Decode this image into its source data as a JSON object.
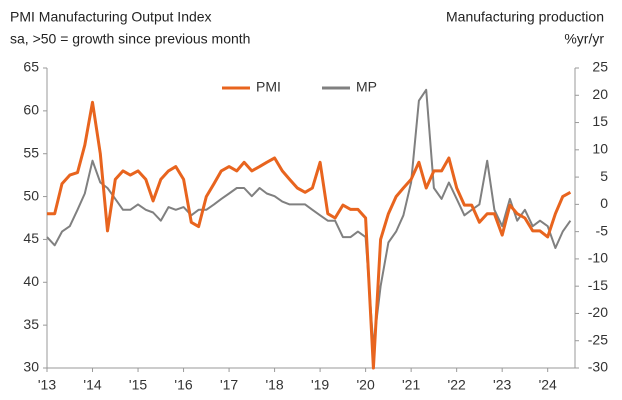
{
  "chart_data": {
    "type": "line",
    "title": "PMI Manufacturing Output Index",
    "subtitle": "sa, >50 = growth since previous month",
    "y2_label": "Manufacturing production",
    "y2_unit": "%yr/yr",
    "x": [
      2013,
      2013.17,
      2013.33,
      2013.5,
      2013.67,
      2013.83,
      2014,
      2014.17,
      2014.33,
      2014.5,
      2014.67,
      2014.83,
      2015,
      2015.17,
      2015.33,
      2015.5,
      2015.67,
      2015.83,
      2016,
      2016.17,
      2016.33,
      2016.5,
      2016.67,
      2016.83,
      2017,
      2017.17,
      2017.33,
      2017.5,
      2017.67,
      2017.83,
      2018,
      2018.17,
      2018.33,
      2018.5,
      2018.67,
      2018.83,
      2019,
      2019.17,
      2019.33,
      2019.5,
      2019.67,
      2019.83,
      2020,
      2020.17,
      2020.33,
      2020.5,
      2020.67,
      2020.83,
      2021,
      2021.17,
      2021.33,
      2021.5,
      2021.67,
      2021.83,
      2022,
      2022.17,
      2022.33,
      2022.5,
      2022.67,
      2022.83,
      2023,
      2023.17,
      2023.33,
      2023.5,
      2023.67,
      2023.83,
      2024,
      2024.17,
      2024.33,
      2024.5
    ],
    "series": [
      {
        "name": "PMI",
        "color": "#e8641e",
        "axis": "y",
        "values": [
          48,
          48,
          51.5,
          52.5,
          52.8,
          56,
          61,
          55,
          46,
          52,
          53,
          52.5,
          53,
          52,
          49.5,
          52,
          53,
          53.5,
          52,
          47,
          46.5,
          50,
          51.5,
          53,
          53.5,
          53,
          54,
          53,
          53.5,
          54,
          54.5,
          53,
          52,
          51,
          50.5,
          51,
          54,
          48,
          47.5,
          49,
          48.5,
          48.5,
          47.5,
          30,
          45,
          48,
          50,
          51,
          52,
          54,
          51,
          53,
          53,
          54.5,
          51,
          49,
          49,
          47,
          48,
          48,
          45.5,
          49,
          48,
          47.5,
          46,
          46,
          45.3,
          48,
          50,
          50.5
        ]
      },
      {
        "name": "MP",
        "color": "#808080",
        "axis": "y2",
        "values": [
          -6,
          -7.5,
          -5,
          -4,
          -1,
          2,
          8,
          4,
          3,
          1,
          -1,
          -1,
          0,
          -1,
          -1.5,
          -3,
          -0.5,
          -1,
          -0.5,
          -2,
          -1,
          -1,
          0,
          1,
          2,
          3,
          3,
          1.5,
          3,
          2,
          1.5,
          0.5,
          0,
          0,
          0,
          -1,
          -2,
          -3,
          -3,
          -6,
          -6,
          -5,
          -6,
          -26,
          -15,
          -7,
          -5,
          -2,
          4,
          19,
          21,
          3,
          1,
          4,
          1,
          -2,
          -1,
          0,
          8,
          -1,
          -4,
          1,
          -3,
          -1,
          -4,
          -3,
          -4,
          -8,
          -5,
          -3
        ]
      }
    ],
    "xlim": [
      2013,
      2024.6
    ],
    "xticks": [
      {
        "value": 2013,
        "label": "'13"
      },
      {
        "value": 2014,
        "label": "'14"
      },
      {
        "value": 2015,
        "label": "'15"
      },
      {
        "value": 2016,
        "label": "'16"
      },
      {
        "value": 2017,
        "label": "'17"
      },
      {
        "value": 2018,
        "label": "'18"
      },
      {
        "value": 2019,
        "label": "'19"
      },
      {
        "value": 2020,
        "label": "'20"
      },
      {
        "value": 2021,
        "label": "'21"
      },
      {
        "value": 2022,
        "label": "'22"
      },
      {
        "value": 2023,
        "label": "'23"
      },
      {
        "value": 2024,
        "label": "'24"
      }
    ],
    "ylim": [
      30,
      65
    ],
    "yticks": [
      30,
      35,
      40,
      45,
      50,
      55,
      60,
      65
    ],
    "y2lim": [
      -30,
      25
    ],
    "y2ticks": [
      -30,
      -25,
      -20,
      -15,
      -10,
      -5,
      0,
      5,
      10,
      15,
      20,
      25
    ],
    "legend": "top"
  }
}
